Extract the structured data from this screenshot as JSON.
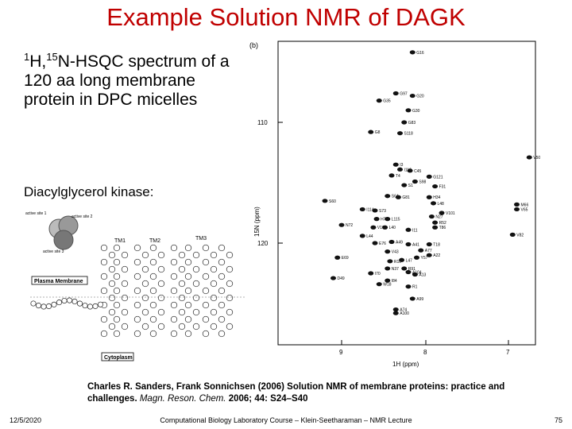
{
  "title": "Example Solution NMR of DAGK",
  "desc": {
    "sup1": "1",
    "part1": "H,",
    "sup2": "15",
    "part2": "N-HSQC spectrum of a 120 aa long membrane protein in DPC micelles"
  },
  "kinase_label": "Diacylglycerol kinase:",
  "spectrum": {
    "panel_label": "(b)",
    "y_tick_110": "110",
    "y_tick_120": "120",
    "x_tick_9": "9",
    "x_tick_8": "8",
    "x_tick_7": "7",
    "y_axis_label": "15N (ppm)",
    "x_axis_label": "1H (ppm)",
    "peaks": [
      {
        "label": "G16",
        "h": 8.15,
        "n": 104.2
      },
      {
        "label": "G97",
        "h": 8.35,
        "n": 107.6
      },
      {
        "label": "G20",
        "h": 8.15,
        "n": 107.8
      },
      {
        "label": "G35",
        "h": 8.55,
        "n": 108.2
      },
      {
        "label": "G30",
        "h": 8.2,
        "n": 109.0
      },
      {
        "label": "G83",
        "h": 8.25,
        "n": 110.0
      },
      {
        "label": "G8",
        "h": 8.65,
        "n": 110.8
      },
      {
        "label": "S118",
        "h": 8.3,
        "n": 110.9
      },
      {
        "label": "V50",
        "h": 6.75,
        "n": 112.9
      },
      {
        "label": "I3",
        "h": 8.35,
        "n": 113.5
      },
      {
        "label": "C45",
        "h": 8.18,
        "n": 114.0
      },
      {
        "label": "I110",
        "h": 8.3,
        "n": 113.9
      },
      {
        "label": "T4",
        "h": 8.4,
        "n": 114.4
      },
      {
        "label": "G121",
        "h": 7.95,
        "n": 114.5
      },
      {
        "label": "S98",
        "h": 8.12,
        "n": 114.9
      },
      {
        "label": "S1",
        "h": 8.25,
        "n": 115.2
      },
      {
        "label": "F31",
        "h": 7.88,
        "n": 115.3
      },
      {
        "label": "S60",
        "h": 9.2,
        "n": 116.5
      },
      {
        "label": "S64",
        "h": 8.45,
        "n": 116.1
      },
      {
        "label": "G81",
        "h": 8.32,
        "n": 116.2
      },
      {
        "label": "H34",
        "h": 7.95,
        "n": 116.2
      },
      {
        "label": "L48",
        "h": 7.9,
        "n": 116.7
      },
      {
        "label": "I114",
        "h": 8.75,
        "n": 117.2
      },
      {
        "label": "S73",
        "h": 8.6,
        "n": 117.3
      },
      {
        "label": "M66",
        "h": 6.9,
        "n": 116.8
      },
      {
        "label": "V65",
        "h": 6.9,
        "n": 117.2
      },
      {
        "label": "V101",
        "h": 7.8,
        "n": 117.5
      },
      {
        "label": "N27",
        "h": 7.92,
        "n": 117.8
      },
      {
        "label": "L115",
        "h": 8.45,
        "n": 118.0
      },
      {
        "label": "H7",
        "h": 8.58,
        "n": 118.0
      },
      {
        "label": "N72",
        "h": 9.0,
        "n": 118.5
      },
      {
        "label": "R52",
        "h": 7.88,
        "n": 118.3
      },
      {
        "label": "V107",
        "h": 8.62,
        "n": 118.7
      },
      {
        "label": "L40",
        "h": 8.48,
        "n": 118.7
      },
      {
        "label": "I11",
        "h": 8.2,
        "n": 118.9
      },
      {
        "label": "T86",
        "h": 7.88,
        "n": 118.7
      },
      {
        "label": "V82",
        "h": 6.95,
        "n": 119.3
      },
      {
        "label": "L44",
        "h": 8.75,
        "n": 119.4
      },
      {
        "label": "E76",
        "h": 8.6,
        "n": 120.0
      },
      {
        "label": "A49",
        "h": 8.4,
        "n": 119.9
      },
      {
        "label": "A41",
        "h": 8.2,
        "n": 120.1
      },
      {
        "label": "T18",
        "h": 7.95,
        "n": 120.1
      },
      {
        "label": "E69",
        "h": 9.05,
        "n": 121.2
      },
      {
        "label": "V43",
        "h": 8.45,
        "n": 120.7
      },
      {
        "label": "A77",
        "h": 8.05,
        "n": 120.6
      },
      {
        "label": "A22",
        "h": 7.95,
        "n": 121.0
      },
      {
        "label": "R10",
        "h": 8.42,
        "n": 121.5
      },
      {
        "label": "L47",
        "h": 8.28,
        "n": 121.4
      },
      {
        "label": "Y57",
        "h": 8.1,
        "n": 121.2
      },
      {
        "label": "N37",
        "h": 8.45,
        "n": 122.1
      },
      {
        "label": "R91",
        "h": 8.25,
        "n": 122.1
      },
      {
        "label": "I70",
        "h": 8.65,
        "n": 122.5
      },
      {
        "label": "A104",
        "h": 8.2,
        "n": 122.4
      },
      {
        "label": "A13",
        "h": 8.12,
        "n": 122.6
      },
      {
        "label": "D49",
        "h": 9.1,
        "n": 122.9
      },
      {
        "label": "I84",
        "h": 8.45,
        "n": 123.1
      },
      {
        "label": "W18",
        "h": 8.55,
        "n": 123.4
      },
      {
        "label": "R1",
        "h": 8.2,
        "n": 123.6
      },
      {
        "label": "A99",
        "h": 8.15,
        "n": 124.6
      },
      {
        "label": "A74",
        "h": 8.35,
        "n": 125.5
      },
      {
        "label": "A100",
        "h": 8.35,
        "n": 125.8
      }
    ]
  },
  "membrane": {
    "legend_active_site_1": "active site 1",
    "legend_active_site_2": "active site 2",
    "legend_active_site_3": "active site 3",
    "legend_tm1": "TM1",
    "legend_tm2": "TM2",
    "legend_tm3": "TM3",
    "plasma_membrane": "Plasma Membrane",
    "cytoplasm": "Cytoplasm",
    "tm_label_1": "TM1",
    "tm_label_2": "TM2",
    "tm_label_3": "TM3"
  },
  "reference": {
    "main": "Charles R. Sanders, Frank Sonnichsen (2006) Solution NMR of membrane proteins: practice and challenges.",
    "journal": "Magn. Reson. Chem.",
    "year": "2006;",
    "volume": "44",
    "pages": ": S24–S40"
  },
  "footer": {
    "date": "12/5/2020",
    "course": "Computational Biology Laboratory Course – Klein-Seetharaman – NMR Lecture",
    "page": "75"
  }
}
